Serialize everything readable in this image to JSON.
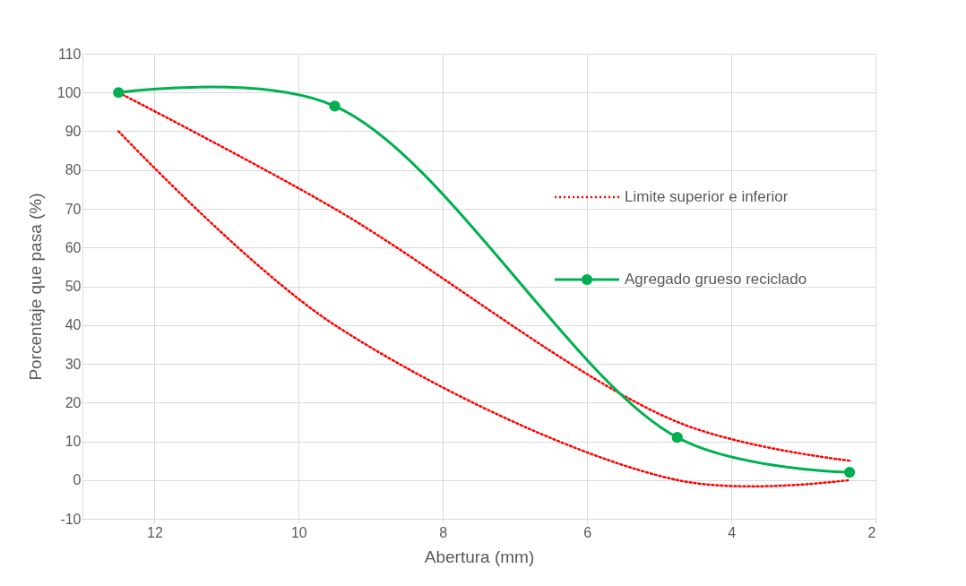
{
  "chart_data": {
    "type": "line",
    "xlabel": "Abertura (mm)",
    "ylabel": "Porcentaje que pasa (%)",
    "x": [
      12.5,
      9.5,
      4.75,
      2.36
    ],
    "xlim": [
      13,
      2
    ],
    "xticks": [
      12,
      10,
      8,
      6,
      4,
      2
    ],
    "ylim": [
      -10,
      110
    ],
    "yticks": [
      -10,
      0,
      10,
      20,
      30,
      40,
      50,
      60,
      70,
      80,
      90,
      100,
      110
    ],
    "grid": true,
    "legend": "right",
    "series": [
      {
        "name": "Limite superior e inferior",
        "color": "#ff0000",
        "values": [
          100,
          70,
          15,
          5
        ],
        "line_style": "dotted",
        "marker": "none"
      },
      {
        "color": "#ff0000",
        "values": [
          90,
          40,
          0,
          0
        ],
        "line_style": "dotted",
        "marker": "none"
      },
      {
        "name": "Agregado grueso reciclado",
        "color": "#00b050",
        "values": [
          100,
          96.5,
          11,
          2
        ],
        "line_style": "solid",
        "marker": "circle"
      }
    ]
  }
}
